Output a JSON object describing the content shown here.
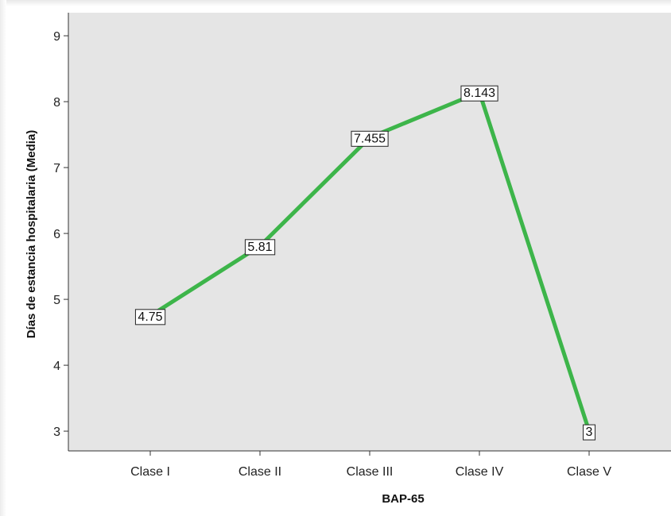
{
  "chart_data": {
    "type": "line",
    "title": "",
    "xlabel": "BAP-65",
    "ylabel": "Días de estancia hospitalaria (Media)",
    "categories": [
      "Clase I",
      "Clase II",
      "Clase III",
      "Clase IV",
      "Clase V"
    ],
    "values": [
      4.75,
      5.81,
      7.455,
      8.143,
      3
    ],
    "value_labels": [
      "4.75",
      "5.81",
      "7.455",
      "8.143",
      "3"
    ],
    "ylim": [
      2.7,
      9.35
    ],
    "yticks": [
      3,
      4,
      5,
      6,
      7,
      8,
      9
    ],
    "ytick_labels": [
      "3",
      "4",
      "5",
      "6",
      "7",
      "8",
      "9"
    ],
    "grid": false,
    "line_color": "#3db54a",
    "plot_background": "#e5e5e5"
  }
}
